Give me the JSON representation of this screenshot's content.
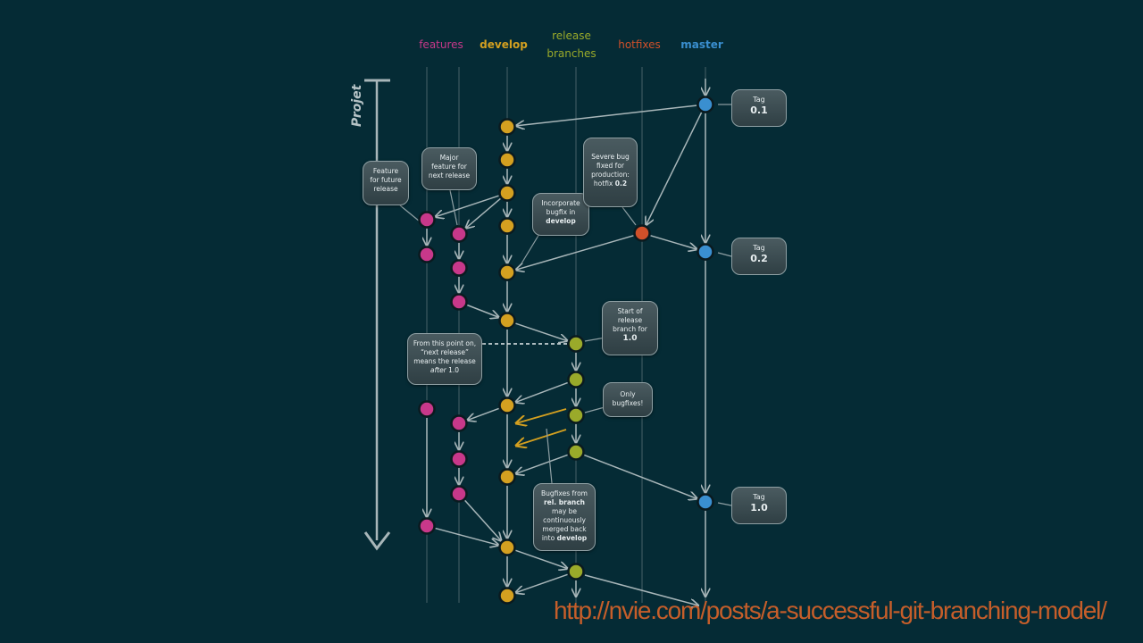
{
  "columns": [
    {
      "label": "features",
      "color": "#c8388a",
      "bold": false
    },
    {
      "label": "develop",
      "color": "#d4a020",
      "bold": true
    },
    {
      "label": "release",
      "label2": "branches",
      "color": "#9aaa2a",
      "bold": false
    },
    {
      "label": "hotfixes",
      "color": "#d0502a",
      "bold": false
    },
    {
      "label": "master",
      "color": "#3a8fd0",
      "bold": true
    }
  ],
  "timeline_label": "Projet",
  "tags": [
    {
      "label": "Tag",
      "value": "0.1"
    },
    {
      "label": "Tag",
      "value": "0.2"
    },
    {
      "label": "Tag",
      "value": "1.0"
    }
  ],
  "callouts": {
    "future_feature": {
      "l1": "Feature",
      "l2": "for future",
      "l3": "release"
    },
    "major_feature": {
      "l1": "Major",
      "l2": "feature for",
      "l3": "next release"
    },
    "incorporate": {
      "l1": "Incorporate",
      "l2": "bugfix in",
      "l3": "develop"
    },
    "severe_bug": {
      "l1": "Severe bug",
      "l2": "fixed for",
      "l3": "production:",
      "l4": "hotfix",
      "l5": "0.2"
    },
    "start_release": {
      "l1": "Start of",
      "l2": "release",
      "l3": "branch for",
      "l4": "1.0"
    },
    "from_this_point": {
      "l1": "From this point on,",
      "l2": "“next release”",
      "l3": "means the release",
      "l4": "after",
      "l5": "1.0"
    },
    "only_bugfixes": {
      "l1": "Only",
      "l2": "bugfixes!"
    },
    "bugfixes_from": {
      "l1": "Bugfixes from",
      "l2": "rel. branch",
      "l3": "may be",
      "l4": "continuously",
      "l5": "merged back",
      "l6": "into",
      "l7": "develop"
    }
  },
  "url": "http://nvie.com/posts/a-successful-git-branching-model/",
  "colors": {
    "background": "#052b35",
    "feature": "#c8388a",
    "develop": "#d4a020",
    "release": "#9aaa2a",
    "hotfix": "#d0502a",
    "master": "#3a8fd0",
    "line": "#a8b6b9"
  }
}
